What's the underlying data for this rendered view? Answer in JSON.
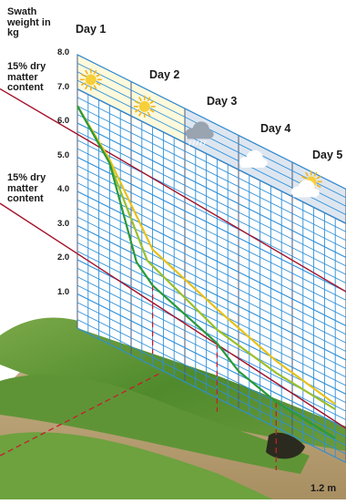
{
  "chart_data": {
    "type": "line",
    "title": "",
    "ylabel": "Swath weight in kg",
    "ylim": [
      0,
      8
    ],
    "y_ticks": [
      "1.0",
      "2.0",
      "3.0",
      "4.0",
      "5.0",
      "6.0",
      "7.0",
      "8.0"
    ],
    "days": [
      "Day 1",
      "Day 2",
      "Day 3",
      "Day 4",
      "Day 5"
    ],
    "day_icons": [
      "sun-icon",
      "sun-icon",
      "rain-cloud-icon",
      "cloud-icon",
      "sun-cloud-icon"
    ],
    "reference_lines": [
      {
        "label": "15% dry matter content",
        "y_start": 7.0,
        "y_end": 5.0,
        "color": "#a3122a"
      },
      {
        "label": "15% dry matter content",
        "y_start": 3.65,
        "y_end": 1.0,
        "color": "#a3122a"
      }
    ],
    "series": [
      {
        "color": "#e8c21a",
        "points": [
          [
            0.0,
            6.5
          ],
          [
            0.6,
            5.4
          ],
          [
            1.4,
            3.4
          ],
          [
            2.6,
            2.6
          ],
          [
            3.7,
            1.95
          ],
          [
            4.8,
            1.55
          ]
        ]
      },
      {
        "color": "#9cbf2a",
        "points": [
          [
            0.0,
            6.5
          ],
          [
            0.6,
            5.3
          ],
          [
            1.3,
            3.0
          ],
          [
            2.6,
            2.0
          ],
          [
            3.7,
            1.6
          ],
          [
            4.8,
            1.4
          ]
        ]
      },
      {
        "color": "#2a9a3a",
        "points": [
          [
            0.0,
            6.5
          ],
          [
            0.6,
            5.3
          ],
          [
            1.1,
            2.8
          ],
          [
            1.4,
            2.35
          ],
          [
            2.6,
            1.6
          ],
          [
            3.0,
            1.1
          ],
          [
            3.7,
            0.75
          ],
          [
            4.8,
            0.55
          ]
        ]
      }
    ],
    "drop_lines_x": [
      1.4,
      2.6,
      3.7
    ],
    "grid": true,
    "x_unit": "1.2 m"
  }
}
